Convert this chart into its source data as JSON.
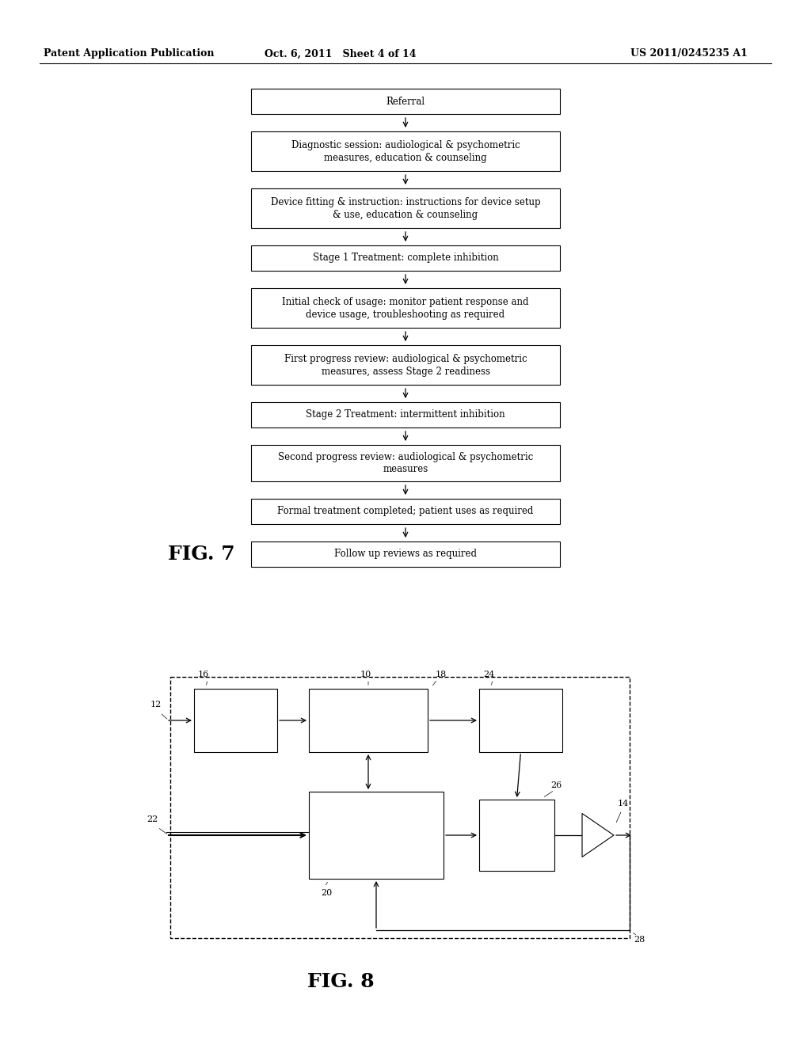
{
  "header_left": "Patent Application Publication",
  "header_center": "Oct. 6, 2011   Sheet 4 of 14",
  "header_right": "US 2011/0245235 A1",
  "fig7_label": "FIG. 7",
  "fig8_label": "FIG. 8",
  "flowchart_boxes": [
    "Referral",
    "Diagnostic session: audiological & psychometric\nmeasures, education & counseling",
    "Device fitting & instruction: instructions for device setup\n& use, education & counseling",
    "Stage 1 Treatment: complete inhibition",
    "Initial check of usage: monitor patient response and\ndevice usage, troubleshooting as required",
    "First progress review: audiological & psychometric\nmeasures, assess Stage 2 readiness",
    "Stage 2 Treatment: intermittent inhibition",
    "Second progress review: audiological & psychometric\nmeasures",
    "Formal treatment completed; patient uses as required",
    "Follow up reviews as required"
  ],
  "box_color": "#ffffff",
  "box_edge_color": "#000000",
  "arrow_color": "#000000",
  "text_color": "#000000",
  "background_color": "#ffffff",
  "font_size_header": 9,
  "font_size_box": 8.5,
  "font_size_fig_label": 18,
  "font_size_label": 8
}
